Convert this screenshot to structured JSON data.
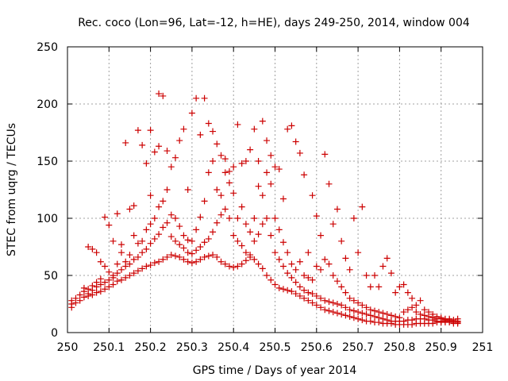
{
  "chart_data": {
    "type": "scatter",
    "title": "Rec. coco (Lon=96, Lat=-12, h=HE), days 249-250, 2014, window 004",
    "xlabel": "GPS time / Days of year 2014",
    "ylabel": "STEC from uqrg / TECUs",
    "xlim": [
      250,
      251
    ],
    "ylim": [
      0,
      250
    ],
    "xticks": [
      "250",
      "250.1",
      "250.2",
      "250.3",
      "250.4",
      "250.5",
      "250.6",
      "250.7",
      "250.8",
      "250.9",
      "251"
    ],
    "yticks": [
      "0",
      "50",
      "100",
      "150",
      "200",
      "250"
    ],
    "grid": true,
    "marker": "plus",
    "color": "#cc0000",
    "points": [
      [
        250.01,
        22
      ],
      [
        250.01,
        25
      ],
      [
        250.01,
        28
      ],
      [
        250.02,
        26
      ],
      [
        250.02,
        30
      ],
      [
        250.03,
        28
      ],
      [
        250.03,
        33
      ],
      [
        250.04,
        31
      ],
      [
        250.04,
        36
      ],
      [
        250.04,
        39
      ],
      [
        250.05,
        32
      ],
      [
        250.05,
        34
      ],
      [
        250.05,
        38
      ],
      [
        250.05,
        75
      ],
      [
        250.06,
        33
      ],
      [
        250.06,
        37
      ],
      [
        250.06,
        41
      ],
      [
        250.06,
        73
      ],
      [
        250.07,
        35
      ],
      [
        250.07,
        40
      ],
      [
        250.07,
        44
      ],
      [
        250.07,
        70
      ],
      [
        250.08,
        36
      ],
      [
        250.08,
        42
      ],
      [
        250.08,
        47
      ],
      [
        250.08,
        62
      ],
      [
        250.09,
        38
      ],
      [
        250.09,
        44
      ],
      [
        250.09,
        101
      ],
      [
        250.09,
        58
      ],
      [
        250.1,
        40
      ],
      [
        250.1,
        46
      ],
      [
        250.1,
        53
      ],
      [
        250.1,
        94
      ],
      [
        250.11,
        42
      ],
      [
        250.11,
        48
      ],
      [
        250.11,
        50
      ],
      [
        250.11,
        80
      ],
      [
        250.12,
        45
      ],
      [
        250.12,
        52
      ],
      [
        250.12,
        60
      ],
      [
        250.12,
        104
      ],
      [
        250.13,
        46
      ],
      [
        250.13,
        55
      ],
      [
        250.13,
        70
      ],
      [
        250.13,
        77
      ],
      [
        250.14,
        48
      ],
      [
        250.14,
        58
      ],
      [
        250.14,
        62
      ],
      [
        250.14,
        166
      ],
      [
        250.15,
        50
      ],
      [
        250.15,
        60
      ],
      [
        250.15,
        68
      ],
      [
        250.15,
        108
      ],
      [
        250.16,
        52
      ],
      [
        250.16,
        64
      ],
      [
        250.16,
        85
      ],
      [
        250.16,
        111
      ],
      [
        250.17,
        54
      ],
      [
        250.17,
        66
      ],
      [
        250.17,
        78
      ],
      [
        250.17,
        177
      ],
      [
        250.18,
        56
      ],
      [
        250.18,
        70
      ],
      [
        250.18,
        80
      ],
      [
        250.18,
        164
      ],
      [
        250.19,
        58
      ],
      [
        250.19,
        73
      ],
      [
        250.19,
        90
      ],
      [
        250.19,
        148
      ],
      [
        250.2,
        59
      ],
      [
        250.2,
        78
      ],
      [
        250.2,
        95
      ],
      [
        250.2,
        177
      ],
      [
        250.2,
        120
      ],
      [
        250.21,
        61
      ],
      [
        250.21,
        82
      ],
      [
        250.21,
        100
      ],
      [
        250.21,
        158
      ],
      [
        250.22,
        62
      ],
      [
        250.22,
        86
      ],
      [
        250.22,
        110
      ],
      [
        250.22,
        209
      ],
      [
        250.22,
        163
      ],
      [
        250.23,
        64
      ],
      [
        250.23,
        92
      ],
      [
        250.23,
        115
      ],
      [
        250.23,
        207
      ],
      [
        250.24,
        66
      ],
      [
        250.24,
        96
      ],
      [
        250.24,
        125
      ],
      [
        250.24,
        159
      ],
      [
        250.25,
        68
      ],
      [
        250.25,
        84
      ],
      [
        250.25,
        103
      ],
      [
        250.25,
        145
      ],
      [
        250.26,
        67
      ],
      [
        250.26,
        80
      ],
      [
        250.26,
        100
      ],
      [
        250.26,
        153
      ],
      [
        250.27,
        66
      ],
      [
        250.27,
        77
      ],
      [
        250.27,
        93
      ],
      [
        250.27,
        168
      ],
      [
        250.28,
        64
      ],
      [
        250.28,
        74
      ],
      [
        250.28,
        85
      ],
      [
        250.28,
        178
      ],
      [
        250.29,
        62
      ],
      [
        250.29,
        70
      ],
      [
        250.29,
        81
      ],
      [
        250.29,
        125
      ],
      [
        250.3,
        61
      ],
      [
        250.3,
        69
      ],
      [
        250.3,
        80
      ],
      [
        250.3,
        192
      ],
      [
        250.31,
        62
      ],
      [
        250.31,
        72
      ],
      [
        250.31,
        90
      ],
      [
        250.31,
        205
      ],
      [
        250.32,
        64
      ],
      [
        250.32,
        75
      ],
      [
        250.32,
        101
      ],
      [
        250.32,
        173
      ],
      [
        250.33,
        66
      ],
      [
        250.33,
        79
      ],
      [
        250.33,
        115
      ],
      [
        250.33,
        205
      ],
      [
        250.34,
        67
      ],
      [
        250.34,
        82
      ],
      [
        250.34,
        140
      ],
      [
        250.34,
        183
      ],
      [
        250.35,
        68
      ],
      [
        250.35,
        88
      ],
      [
        250.35,
        150
      ],
      [
        250.35,
        176
      ],
      [
        250.36,
        66
      ],
      [
        250.36,
        96
      ],
      [
        250.36,
        125
      ],
      [
        250.36,
        165
      ],
      [
        250.37,
        62
      ],
      [
        250.37,
        103
      ],
      [
        250.37,
        120
      ],
      [
        250.37,
        155
      ],
      [
        250.38,
        60
      ],
      [
        250.38,
        108
      ],
      [
        250.38,
        140
      ],
      [
        250.38,
        152
      ],
      [
        250.39,
        58
      ],
      [
        250.39,
        100
      ],
      [
        250.39,
        131
      ],
      [
        250.39,
        141
      ],
      [
        250.4,
        57
      ],
      [
        250.4,
        85
      ],
      [
        250.4,
        122
      ],
      [
        250.4,
        145
      ],
      [
        250.41,
        58
      ],
      [
        250.41,
        80
      ],
      [
        250.41,
        100
      ],
      [
        250.41,
        182
      ],
      [
        250.42,
        60
      ],
      [
        250.42,
        76
      ],
      [
        250.42,
        110
      ],
      [
        250.42,
        148
      ],
      [
        250.43,
        63
      ],
      [
        250.43,
        70
      ],
      [
        250.43,
        95
      ],
      [
        250.43,
        150
      ],
      [
        250.44,
        66
      ],
      [
        250.44,
        68
      ],
      [
        250.44,
        88
      ],
      [
        250.44,
        160
      ],
      [
        250.45,
        64
      ],
      [
        250.45,
        80
      ],
      [
        250.45,
        100
      ],
      [
        250.45,
        178
      ],
      [
        250.46,
        60
      ],
      [
        250.46,
        86
      ],
      [
        250.46,
        128
      ],
      [
        250.46,
        150
      ],
      [
        250.47,
        56
      ],
      [
        250.47,
        95
      ],
      [
        250.47,
        120
      ],
      [
        250.47,
        185
      ],
      [
        250.48,
        50
      ],
      [
        250.48,
        100
      ],
      [
        250.48,
        140
      ],
      [
        250.48,
        168
      ],
      [
        250.49,
        46
      ],
      [
        250.49,
        85
      ],
      [
        250.49,
        130
      ],
      [
        250.49,
        155
      ],
      [
        250.5,
        42
      ],
      [
        250.5,
        70
      ],
      [
        250.5,
        100
      ],
      [
        250.5,
        145
      ],
      [
        250.51,
        39
      ],
      [
        250.51,
        64
      ],
      [
        250.51,
        90
      ],
      [
        250.51,
        143
      ],
      [
        250.52,
        38
      ],
      [
        250.52,
        58
      ],
      [
        250.52,
        79
      ],
      [
        250.52,
        117
      ],
      [
        250.53,
        37
      ],
      [
        250.53,
        52
      ],
      [
        250.53,
        70
      ],
      [
        250.53,
        178
      ],
      [
        250.54,
        36
      ],
      [
        250.54,
        48
      ],
      [
        250.54,
        60
      ],
      [
        250.54,
        181
      ],
      [
        250.55,
        34
      ],
      [
        250.55,
        44
      ],
      [
        250.55,
        55
      ],
      [
        250.55,
        167
      ],
      [
        250.56,
        32
      ],
      [
        250.56,
        40
      ],
      [
        250.56,
        62
      ],
      [
        250.56,
        157
      ],
      [
        250.57,
        30
      ],
      [
        250.57,
        37
      ],
      [
        250.57,
        50
      ],
      [
        250.57,
        138
      ],
      [
        250.58,
        28
      ],
      [
        250.58,
        35
      ],
      [
        250.58,
        48
      ],
      [
        250.58,
        70
      ],
      [
        250.59,
        26
      ],
      [
        250.59,
        34
      ],
      [
        250.59,
        46
      ],
      [
        250.59,
        120
      ],
      [
        250.6,
        24
      ],
      [
        250.6,
        32
      ],
      [
        250.6,
        58
      ],
      [
        250.6,
        102
      ],
      [
        250.61,
        22
      ],
      [
        250.61,
        30
      ],
      [
        250.61,
        55
      ],
      [
        250.61,
        85
      ],
      [
        250.62,
        20
      ],
      [
        250.62,
        28
      ],
      [
        250.62,
        64
      ],
      [
        250.62,
        156
      ],
      [
        250.63,
        19
      ],
      [
        250.63,
        27
      ],
      [
        250.63,
        60
      ],
      [
        250.63,
        130
      ],
      [
        250.64,
        18
      ],
      [
        250.64,
        26
      ],
      [
        250.64,
        50
      ],
      [
        250.64,
        95
      ],
      [
        250.65,
        17
      ],
      [
        250.65,
        25
      ],
      [
        250.65,
        45
      ],
      [
        250.65,
        108
      ],
      [
        250.66,
        16
      ],
      [
        250.66,
        24
      ],
      [
        250.66,
        40
      ],
      [
        250.66,
        80
      ],
      [
        250.67,
        15
      ],
      [
        250.67,
        22
      ],
      [
        250.67,
        35
      ],
      [
        250.67,
        65
      ],
      [
        250.68,
        14
      ],
      [
        250.68,
        20
      ],
      [
        250.68,
        30
      ],
      [
        250.68,
        55
      ],
      [
        250.69,
        13
      ],
      [
        250.69,
        19
      ],
      [
        250.69,
        28
      ],
      [
        250.69,
        100
      ],
      [
        250.7,
        12
      ],
      [
        250.7,
        18
      ],
      [
        250.7,
        26
      ],
      [
        250.7,
        70
      ],
      [
        250.71,
        11
      ],
      [
        250.71,
        17
      ],
      [
        250.71,
        24
      ],
      [
        250.71,
        110
      ],
      [
        250.72,
        10
      ],
      [
        250.72,
        16
      ],
      [
        250.72,
        22
      ],
      [
        250.72,
        50
      ],
      [
        250.73,
        10
      ],
      [
        250.73,
        15
      ],
      [
        250.73,
        20
      ],
      [
        250.73,
        40
      ],
      [
        250.74,
        9
      ],
      [
        250.74,
        14
      ],
      [
        250.74,
        19
      ],
      [
        250.74,
        50
      ],
      [
        250.75,
        9
      ],
      [
        250.75,
        13
      ],
      [
        250.75,
        18
      ],
      [
        250.75,
        40
      ],
      [
        250.76,
        8
      ],
      [
        250.76,
        12
      ],
      [
        250.76,
        17
      ],
      [
        250.76,
        58
      ],
      [
        250.77,
        8
      ],
      [
        250.77,
        11
      ],
      [
        250.77,
        16
      ],
      [
        250.77,
        65
      ],
      [
        250.78,
        8
      ],
      [
        250.78,
        10
      ],
      [
        250.78,
        15
      ],
      [
        250.78,
        52
      ],
      [
        250.79,
        7
      ],
      [
        250.79,
        10
      ],
      [
        250.79,
        14
      ],
      [
        250.79,
        35
      ],
      [
        250.8,
        7
      ],
      [
        250.8,
        10
      ],
      [
        250.8,
        13
      ],
      [
        250.8,
        40
      ],
      [
        250.81,
        7
      ],
      [
        250.81,
        10
      ],
      [
        250.81,
        18
      ],
      [
        250.81,
        42
      ],
      [
        250.82,
        7
      ],
      [
        250.82,
        11
      ],
      [
        250.82,
        20
      ],
      [
        250.82,
        35
      ],
      [
        250.83,
        7
      ],
      [
        250.83,
        11
      ],
      [
        250.83,
        22
      ],
      [
        250.83,
        30
      ],
      [
        250.84,
        8
      ],
      [
        250.84,
        12
      ],
      [
        250.84,
        18
      ],
      [
        250.84,
        24
      ],
      [
        250.85,
        8
      ],
      [
        250.85,
        12
      ],
      [
        250.85,
        16
      ],
      [
        250.85,
        28
      ],
      [
        250.86,
        8
      ],
      [
        250.86,
        12
      ],
      [
        250.86,
        15
      ],
      [
        250.86,
        20
      ],
      [
        250.87,
        8
      ],
      [
        250.87,
        11
      ],
      [
        250.87,
        14
      ],
      [
        250.87,
        18
      ],
      [
        250.88,
        8
      ],
      [
        250.88,
        11
      ],
      [
        250.88,
        13
      ],
      [
        250.88,
        16
      ],
      [
        250.89,
        9
      ],
      [
        250.89,
        10
      ],
      [
        250.89,
        12
      ],
      [
        250.89,
        14
      ],
      [
        250.9,
        9
      ],
      [
        250.9,
        10
      ],
      [
        250.9,
        12
      ],
      [
        250.9,
        13
      ],
      [
        250.91,
        9
      ],
      [
        250.91,
        10
      ],
      [
        250.91,
        11
      ],
      [
        250.91,
        12
      ],
      [
        250.92,
        9
      ],
      [
        250.92,
        10
      ],
      [
        250.92,
        11
      ],
      [
        250.92,
        12
      ],
      [
        250.93,
        8
      ],
      [
        250.93,
        9
      ],
      [
        250.93,
        10
      ],
      [
        250.93,
        11
      ],
      [
        250.94,
        8
      ],
      [
        250.94,
        9
      ],
      [
        250.94,
        10
      ],
      [
        250.94,
        12
      ]
    ]
  }
}
